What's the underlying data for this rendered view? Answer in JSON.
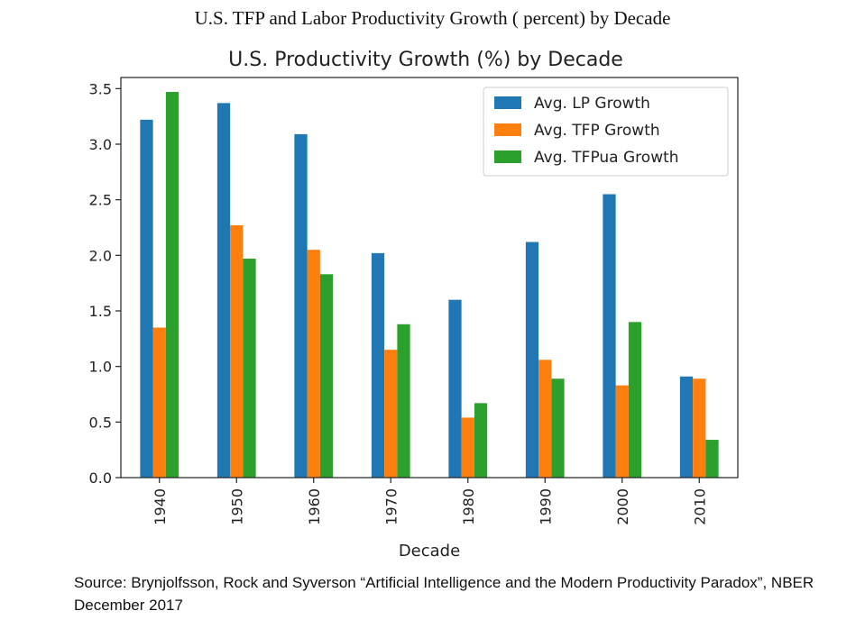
{
  "header": {
    "title": "U.S. TFP and Labor Productivity Growth ( percent) by Decade"
  },
  "chart_data": {
    "type": "bar",
    "title": "U.S. Productivity Growth (%) by Decade",
    "xlabel": "Decade",
    "ylabel": "",
    "categories": [
      "1940",
      "1950",
      "1960",
      "1970",
      "1980",
      "1990",
      "2000",
      "2010"
    ],
    "series": [
      {
        "name": "Avg. LP Growth",
        "color": "#1f77b4",
        "values": [
          3.22,
          3.37,
          3.09,
          2.02,
          1.6,
          2.12,
          2.55,
          0.91
        ]
      },
      {
        "name": "Avg. TFP Growth",
        "color": "#ff7f0e",
        "values": [
          1.35,
          2.27,
          2.05,
          1.15,
          0.54,
          1.06,
          0.83,
          0.89
        ]
      },
      {
        "name": "Avg. TFPua Growth",
        "color": "#2ca02c",
        "values": [
          3.47,
          1.97,
          1.83,
          1.38,
          0.67,
          0.89,
          1.4,
          0.34
        ]
      }
    ],
    "ylim": [
      0,
      3.6
    ],
    "yticks": [
      "0.0",
      "0.5",
      "1.0",
      "1.5",
      "2.0",
      "2.5",
      "3.0",
      "3.5"
    ],
    "grid": false,
    "legend": "top-right"
  },
  "source": {
    "text": "Source: Brynjolfsson, Rock and Syverson “Artificial Intelligence and the Modern Productivity Paradox”, NBER December 2017"
  }
}
